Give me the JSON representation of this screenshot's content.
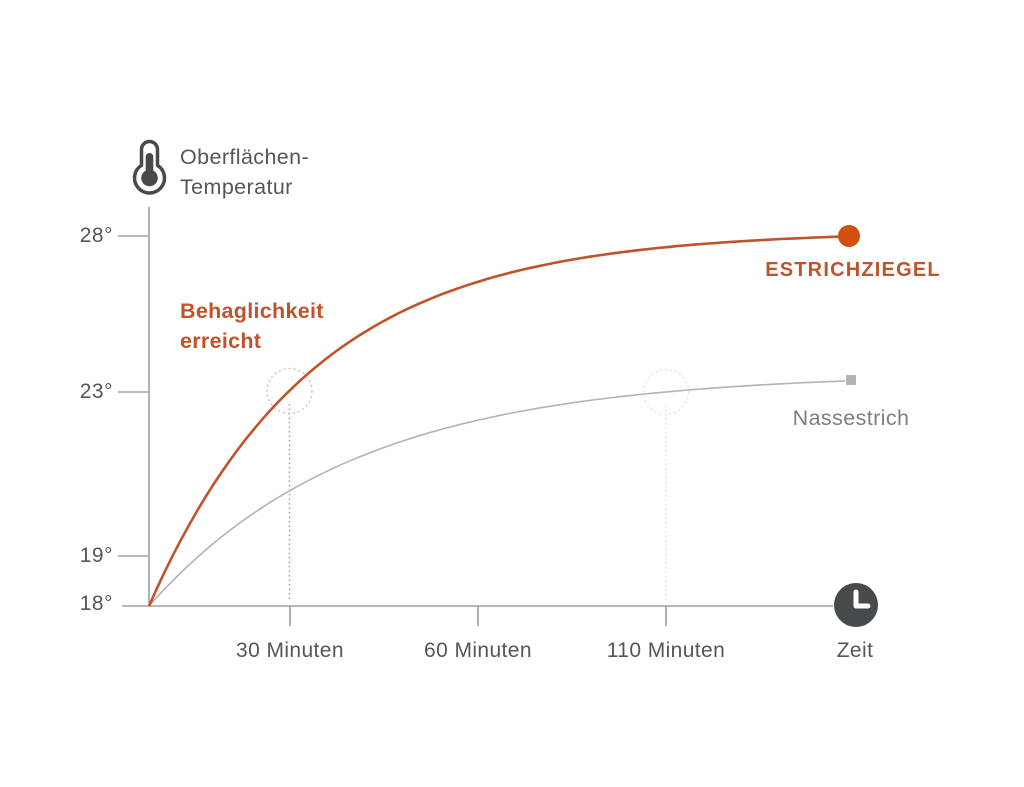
{
  "header": {
    "title_line1": "Oberflächen-",
    "title_line2": "Temperatur",
    "icon": "thermometer-icon"
  },
  "colors": {
    "accent": "#c05329",
    "accent_dot": "#d24f10",
    "curve_gray": "#b3b3b3",
    "axis": "#9da0a2",
    "text_dark": "#54575a",
    "text_muted": "#7c7f81",
    "clock_bg": "#464a4c",
    "circle_30": "#c6bdac",
    "circle_110": "#e0e0e0",
    "vline_30": "#c9906a",
    "vline_110": "#d6d6d6"
  },
  "labels": {
    "y28": "28°",
    "y23": "23°",
    "y19": "19°",
    "y18": "18°",
    "x30": "30 Minuten",
    "x60": "60 Minuten",
    "x110": "110 Minuten",
    "xzeit": "Zeit",
    "behaglichkeit_line1": "Behaglichkeit",
    "behaglichkeit_line2": "erreicht",
    "series_estrichziegel": "ESTRICHZIEGEL",
    "series_nassestrich": "Nassestrich"
  },
  "chart_data": {
    "type": "line",
    "title": "Oberflächen-Temperatur",
    "xlabel": "Zeit",
    "ylabel": "Oberflächen-Temperatur (°C)",
    "ylim": [
      18,
      28
    ],
    "y_ticks": [
      28,
      23,
      19,
      18
    ],
    "x_ticks_minutes": [
      30,
      60,
      110
    ],
    "x_tick_labels": [
      "30 Minuten",
      "60 Minuten",
      "110 Minuten",
      "Zeit"
    ],
    "grid": false,
    "legend_position": "inline-right-of-curves",
    "series": [
      {
        "name": "ESTRICHZIEGEL",
        "style": "solid orange, end dot marker",
        "points": [
          {
            "t_min": 0,
            "temp_c": 18
          },
          {
            "t_min": 30,
            "temp_c": 23
          },
          {
            "t_min": 60,
            "temp_c": 25.6
          },
          {
            "t_min": 110,
            "temp_c": 27.3
          },
          {
            "t_min": 150,
            "temp_c": 28
          }
        ]
      },
      {
        "name": "Nassestrich",
        "style": "thin gray, end square marker",
        "points": [
          {
            "t_min": 0,
            "temp_c": 18
          },
          {
            "t_min": 30,
            "temp_c": 20.3
          },
          {
            "t_min": 60,
            "temp_c": 21.9
          },
          {
            "t_min": 110,
            "temp_c": 23
          },
          {
            "t_min": 150,
            "temp_c": 23.3
          }
        ]
      }
    ],
    "annotations": [
      {
        "text": "Behaglichkeit erreicht",
        "target_series": "ESTRICHZIEGEL",
        "marker": "dotted circle + dotted vertical line",
        "at": {
          "t_min": 30,
          "temp_c": 23
        }
      },
      {
        "text": "",
        "target_series": "Nassestrich",
        "marker": "dotted circle + dotted vertical line",
        "at": {
          "t_min": 110,
          "temp_c": 23
        }
      }
    ]
  }
}
